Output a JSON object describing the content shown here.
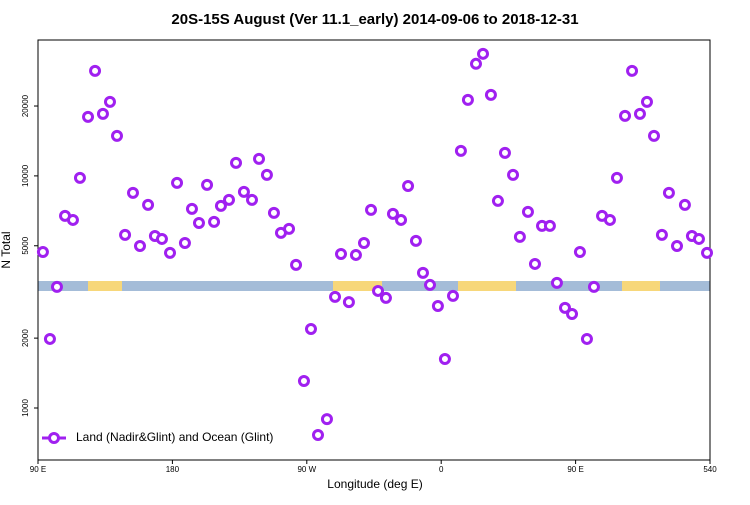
{
  "chart_data": {
    "type": "scatter",
    "title": "20S-15S August (Ver 11.1_early)   2014-09-06 to 2018-12-31",
    "x_label": "Longitude (deg E)",
    "y_label": "N Total",
    "log_y": true,
    "xlim": [
      90,
      540
    ],
    "ylim": [
      597,
      38500
    ],
    "xticks": [
      {
        "value": 90,
        "label": "90 E"
      },
      180,
      {
        "value": 270,
        "label": "90 W"
      },
      {
        "value": 360,
        "label": "0"
      },
      {
        "value": 450,
        "label": "90 E"
      },
      540
    ],
    "yticks": [
      1000,
      2000,
      5000,
      10000,
      20000
    ],
    "legend_position": "bottom-left",
    "series": [
      {
        "name": "Land (Nadir&Glint) and Ocean (Glint)",
        "color": "#a020f0",
        "x": [
          93.3,
          98.0,
          102.7,
          108.1,
          113.4,
          118.1,
          123.5,
          128.2,
          133.5,
          138.2,
          142.9,
          148.3,
          153.6,
          158.3,
          163.7,
          168.3,
          173.0,
          178.4,
          183.1,
          188.4,
          193.1,
          197.8,
          203.2,
          207.9,
          212.5,
          217.9,
          222.6,
          227.9,
          233.3,
          238.0,
          243.3,
          248.0,
          252.7,
          258.1,
          262.8,
          268.1,
          272.8,
          277.5,
          283.5,
          288.9,
          292.9,
          298.2,
          302.9,
          308.3,
          313.0,
          317.7,
          323.0,
          327.7,
          333.1,
          337.8,
          343.1,
          347.8,
          352.5,
          357.8,
          362.5,
          367.9,
          373.2,
          377.9,
          383.3,
          388.0,
          393.3,
          398.0,
          402.7,
          408.1,
          412.7,
          418.1,
          422.8,
          427.5,
          432.8,
          437.5,
          442.9,
          447.6,
          452.9,
          457.6,
          462.3,
          467.7,
          473.0,
          477.7,
          483.1,
          487.8,
          493.1,
          497.8,
          502.5,
          507.8,
          512.5,
          517.9,
          523.2,
          527.9,
          532.6,
          538.0
        ],
        "values": [
          4700,
          1984,
          3325,
          6725,
          6460,
          9800,
          17960,
          28350,
          18500,
          20840,
          14870,
          5570,
          8450,
          4990,
          7500,
          5510,
          5350,
          4660,
          9330,
          5140,
          7210,
          6270,
          9150,
          6340,
          7430,
          7880,
          11380,
          8530,
          7880,
          11840,
          10100,
          6930,
          5680,
          5910,
          4135,
          1307,
          2190,
          765,
          896,
          3010,
          4610,
          2860,
          4565,
          5140,
          7135,
          3194,
          2980,
          6860,
          6460,
          9050,
          5250,
          3820,
          3390,
          2750,
          1626,
          3040,
          12820,
          21260,
          30400,
          33570,
          22340,
          7800,
          12560,
          10100,
          5460,
          7000,
          4175,
          6090,
          6090,
          3460,
          2700,
          2540,
          4700,
          1984,
          3325,
          6725,
          6460,
          9800,
          18140,
          28350,
          18500,
          20840,
          14870,
          5570,
          8450,
          4990,
          7500,
          5510,
          5350,
          4660
        ]
      }
    ]
  }
}
